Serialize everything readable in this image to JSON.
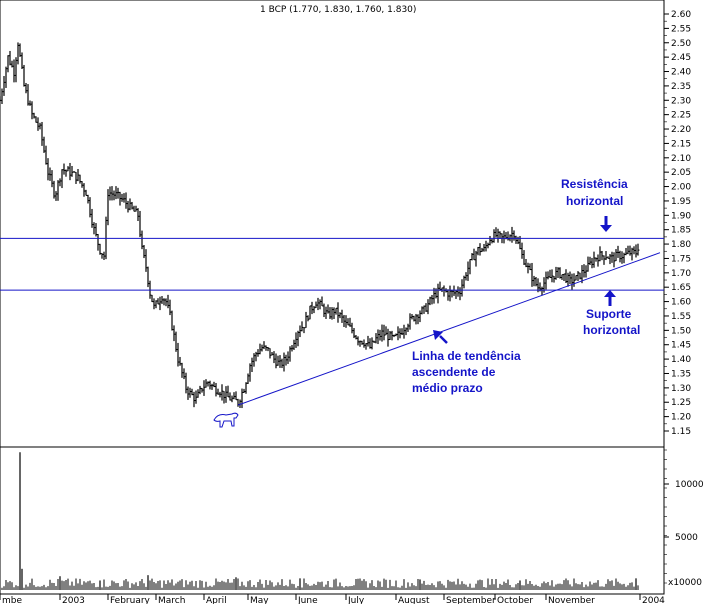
{
  "chart_data": {
    "type": "candlestick",
    "title": "1 BCP (1.770, 1.830, 1.760, 1.830)",
    "price_ticks": [
      "2.60",
      "2.55",
      "2.50",
      "2.45",
      "2.40",
      "2.35",
      "2.30",
      "2.25",
      "2.20",
      "2.15",
      "2.10",
      "2.05",
      "2.00",
      "1.95",
      "1.90",
      "1.85",
      "1.80",
      "1.75",
      "1.70",
      "1.65",
      "1.60",
      "1.55",
      "1.50",
      "1.45",
      "1.40",
      "1.35",
      "1.30",
      "1.25",
      "1.20",
      "1.15"
    ],
    "volume_ticks": [
      "10000",
      "5000"
    ],
    "volume_unit": "x10000",
    "x_labels": [
      "mbe",
      "2003",
      "February",
      "March",
      "April",
      "May",
      "June",
      "July",
      "August",
      "September",
      "October",
      "November",
      "2004"
    ],
    "price_range": [
      1.13,
      2.62
    ],
    "series": {
      "anchors": [
        [
          0,
          2.3
        ],
        [
          8,
          2.45
        ],
        [
          14,
          2.4
        ],
        [
          18,
          2.5
        ],
        [
          24,
          2.35
        ],
        [
          32,
          2.25
        ],
        [
          40,
          2.2
        ],
        [
          48,
          2.05
        ],
        [
          55,
          1.97
        ],
        [
          62,
          2.06
        ],
        [
          70,
          2.05
        ],
        [
          78,
          2.03
        ],
        [
          86,
          1.98
        ],
        [
          94,
          1.85
        ],
        [
          100,
          1.78
        ],
        [
          104,
          1.76
        ],
        [
          108,
          1.98
        ],
        [
          116,
          1.97
        ],
        [
          124,
          1.95
        ],
        [
          132,
          1.92
        ],
        [
          138,
          1.9
        ],
        [
          142,
          1.78
        ],
        [
          146,
          1.72
        ],
        [
          150,
          1.63
        ],
        [
          154,
          1.58
        ],
        [
          158,
          1.6
        ],
        [
          162,
          1.62
        ],
        [
          166,
          1.6
        ],
        [
          170,
          1.55
        ],
        [
          174,
          1.48
        ],
        [
          178,
          1.4
        ],
        [
          182,
          1.35
        ],
        [
          186,
          1.3
        ],
        [
          190,
          1.28
        ],
        [
          196,
          1.26
        ],
        [
          202,
          1.3
        ],
        [
          208,
          1.32
        ],
        [
          214,
          1.3
        ],
        [
          220,
          1.29
        ],
        [
          226,
          1.27
        ],
        [
          232,
          1.26
        ],
        [
          238,
          1.25
        ],
        [
          244,
          1.3
        ],
        [
          250,
          1.38
        ],
        [
          256,
          1.42
        ],
        [
          262,
          1.44
        ],
        [
          268,
          1.43
        ],
        [
          274,
          1.4
        ],
        [
          280,
          1.38
        ],
        [
          286,
          1.4
        ],
        [
          292,
          1.45
        ],
        [
          298,
          1.5
        ],
        [
          304,
          1.52
        ],
        [
          310,
          1.57
        ],
        [
          316,
          1.6
        ],
        [
          322,
          1.58
        ],
        [
          328,
          1.55
        ],
        [
          334,
          1.57
        ],
        [
          340,
          1.55
        ],
        [
          346,
          1.52
        ],
        [
          352,
          1.5
        ],
        [
          358,
          1.47
        ],
        [
          364,
          1.46
        ],
        [
          370,
          1.44
        ],
        [
          376,
          1.47
        ],
        [
          382,
          1.49
        ],
        [
          388,
          1.48
        ],
        [
          394,
          1.47
        ],
        [
          400,
          1.49
        ],
        [
          406,
          1.52
        ],
        [
          412,
          1.54
        ],
        [
          418,
          1.56
        ],
        [
          424,
          1.57
        ],
        [
          430,
          1.6
        ],
        [
          436,
          1.63
        ],
        [
          442,
          1.64
        ],
        [
          448,
          1.63
        ],
        [
          454,
          1.63
        ],
        [
          460,
          1.64
        ],
        [
          466,
          1.7
        ],
        [
          472,
          1.75
        ],
        [
          478,
          1.78
        ],
        [
          484,
          1.78
        ],
        [
          490,
          1.82
        ],
        [
          496,
          1.83
        ],
        [
          502,
          1.82
        ],
        [
          508,
          1.83
        ],
        [
          514,
          1.84
        ],
        [
          518,
          1.8
        ],
        [
          522,
          1.76
        ],
        [
          526,
          1.73
        ],
        [
          530,
          1.7
        ],
        [
          534,
          1.67
        ],
        [
          538,
          1.65
        ],
        [
          542,
          1.66
        ],
        [
          546,
          1.67
        ],
        [
          552,
          1.69
        ],
        [
          558,
          1.7
        ],
        [
          564,
          1.69
        ],
        [
          570,
          1.67
        ],
        [
          576,
          1.68
        ],
        [
          582,
          1.7
        ],
        [
          588,
          1.72
        ],
        [
          594,
          1.75
        ],
        [
          600,
          1.76
        ],
        [
          606,
          1.76
        ],
        [
          612,
          1.75
        ],
        [
          618,
          1.76
        ],
        [
          624,
          1.76
        ],
        [
          630,
          1.77
        ],
        [
          636,
          1.77
        ],
        [
          639,
          1.8
        ]
      ],
      "volume_spikes": [
        [
          20,
          13000
        ],
        [
          22,
          2000
        ],
        [
          60,
          1300
        ],
        [
          100,
          900
        ],
        [
          148,
          1400
        ],
        [
          236,
          1200
        ],
        [
          300,
          1100
        ],
        [
          420,
          1000
        ],
        [
          520,
          900
        ],
        [
          636,
          1100
        ]
      ]
    },
    "lines": {
      "resistance": 1.82,
      "support": 1.64,
      "trend_from": [
        238,
        1.24
      ],
      "trend_to": [
        660,
        1.77
      ]
    },
    "annotations": {
      "resistance_1": "Resistência",
      "resistance_2": "horizontal",
      "support_1": "Suporte",
      "support_2": "horizontal",
      "trend_1": "Linha de tendência",
      "trend_2": "ascendente de",
      "trend_3": "médio prazo"
    },
    "colors": {
      "lines": "#1414c8",
      "annotations": "#1414c8",
      "bars": "#000000"
    }
  }
}
